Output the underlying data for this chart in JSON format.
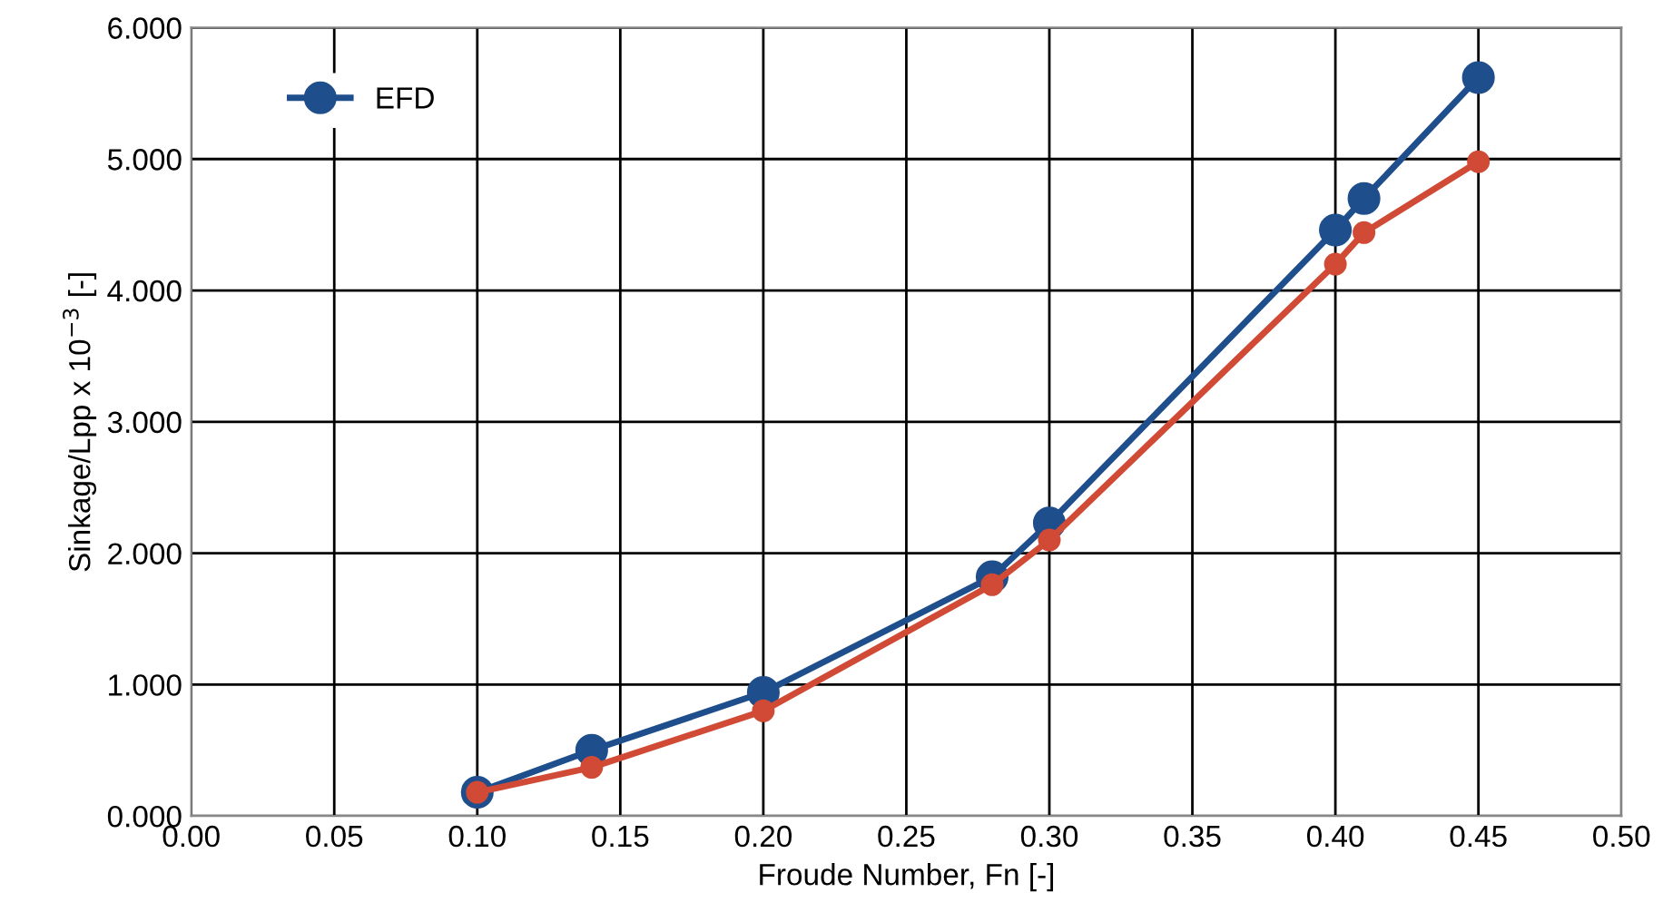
{
  "chart_data": {
    "type": "line",
    "xlabel": "Froude Number, Fn [-]",
    "ylabel": "Sinkage/Lpp x 10$^{−3}$ [-]",
    "xlim": [
      0,
      0.5
    ],
    "ylim": [
      0,
      6
    ],
    "xticks": [
      {
        "value": 0,
        "label": "0.00"
      },
      {
        "value": 0.05,
        "label": "0.05"
      },
      {
        "value": 0.1,
        "label": "0.10"
      },
      {
        "value": 0.15,
        "label": "0.15"
      },
      {
        "value": 0.2,
        "label": "0.20"
      },
      {
        "value": 0.25,
        "label": "0.25"
      },
      {
        "value": 0.3,
        "label": "0.30"
      },
      {
        "value": 0.35,
        "label": "0.35"
      },
      {
        "value": 0.4,
        "label": "0.40"
      },
      {
        "value": 0.45,
        "label": "0.45"
      },
      {
        "value": 0.5,
        "label": "0.50"
      }
    ],
    "yticks": [
      {
        "value": 0,
        "label": "0.000"
      },
      {
        "value": 1,
        "label": "1.000"
      },
      {
        "value": 2,
        "label": "2.000"
      },
      {
        "value": 3,
        "label": "3.000"
      },
      {
        "value": 4,
        "label": "4.000"
      },
      {
        "value": 5,
        "label": "5.000"
      },
      {
        "value": 6,
        "label": "6.000"
      }
    ],
    "grid": true,
    "legend": "top left",
    "marker": "circle",
    "line_style": "solid",
    "series": [
      {
        "name": "EFD",
        "color": "#1f4e8c",
        "x": [
          0.1,
          0.14,
          0.2,
          0.28,
          0.3,
          0.4,
          0.41,
          0.45
        ],
        "values": [
          0.18,
          0.5,
          0.94,
          1.82,
          2.23,
          4.46,
          4.7,
          5.62
        ]
      },
      {
        "color": "#d04a35",
        "x": [
          0.1,
          0.14,
          0.2,
          0.28,
          0.3,
          0.4,
          0.41,
          0.45
        ],
        "values": [
          0.18,
          0.37,
          0.8,
          1.76,
          2.1,
          4.2,
          4.44,
          4.98
        ]
      }
    ]
  }
}
